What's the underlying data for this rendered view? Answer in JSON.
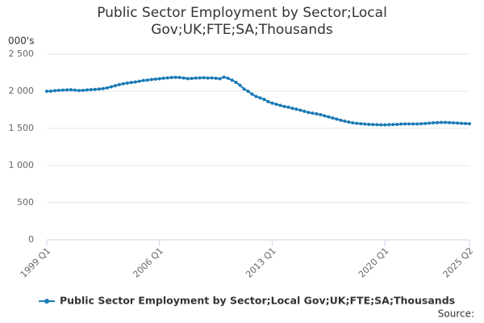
{
  "chart_data": {
    "type": "line",
    "title": "Public Sector Employment by Sector;Local Gov;UK;FTE;SA;Thousands",
    "y_label": "000's",
    "source": "Source:",
    "categories": [
      "1999 Q1",
      null,
      null,
      null,
      null,
      null,
      null,
      null,
      null,
      null,
      null,
      null,
      null,
      null,
      null,
      null,
      null,
      null,
      null,
      null,
      null,
      null,
      null,
      null,
      null,
      null,
      null,
      null,
      "2006 Q1",
      null,
      null,
      null,
      null,
      null,
      null,
      null,
      null,
      null,
      null,
      null,
      null,
      null,
      null,
      null,
      null,
      null,
      null,
      null,
      null,
      null,
      null,
      null,
      null,
      null,
      null,
      null,
      "2013 Q1",
      null,
      null,
      null,
      null,
      null,
      null,
      null,
      null,
      null,
      null,
      null,
      null,
      null,
      null,
      null,
      null,
      null,
      null,
      null,
      null,
      null,
      null,
      null,
      null,
      null,
      null,
      null,
      "2020 Q1",
      null,
      null,
      null,
      null,
      null,
      null,
      null,
      null,
      null,
      null,
      null,
      null,
      null,
      null,
      null,
      null,
      null,
      null,
      null,
      null,
      "2025 Q2"
    ],
    "series": [
      {
        "name": "Public Sector Employment by Sector;Local Gov;UK;FTE;SA;Thousands",
        "color": "#1a7ab5",
        "values": [
          2000,
          2002,
          2008,
          2012,
          2015,
          2018,
          2020,
          2015,
          2010,
          2012,
          2018,
          2022,
          2025,
          2030,
          2035,
          2045,
          2060,
          2075,
          2090,
          2100,
          2110,
          2118,
          2125,
          2135,
          2145,
          2150,
          2158,
          2163,
          2168,
          2175,
          2180,
          2185,
          2188,
          2185,
          2178,
          2170,
          2172,
          2178,
          2180,
          2182,
          2178,
          2180,
          2175,
          2168,
          2190,
          2175,
          2150,
          2120,
          2080,
          2030,
          2000,
          1960,
          1930,
          1910,
          1890,
          1860,
          1840,
          1825,
          1810,
          1795,
          1785,
          1770,
          1758,
          1745,
          1730,
          1715,
          1705,
          1695,
          1685,
          1670,
          1655,
          1640,
          1625,
          1610,
          1598,
          1585,
          1575,
          1568,
          1562,
          1558,
          1555,
          1552,
          1550,
          1548,
          1548,
          1550,
          1552,
          1555,
          1558,
          1560,
          1560,
          1560,
          1560,
          1562,
          1565,
          1570,
          1575,
          1578,
          1580,
          1580,
          1578,
          1575,
          1572,
          1568,
          1565,
          1562
        ]
      }
    ],
    "ylim": [
      0,
      2500
    ],
    "yticks": [
      0,
      500,
      {
        "value": 1000,
        "label": "1 000"
      },
      {
        "value": 1500,
        "label": "1 500"
      },
      {
        "value": 2000,
        "label": "2 000"
      },
      {
        "value": 2500,
        "label": "2 500"
      }
    ],
    "grid": true,
    "legend": "bottom"
  }
}
